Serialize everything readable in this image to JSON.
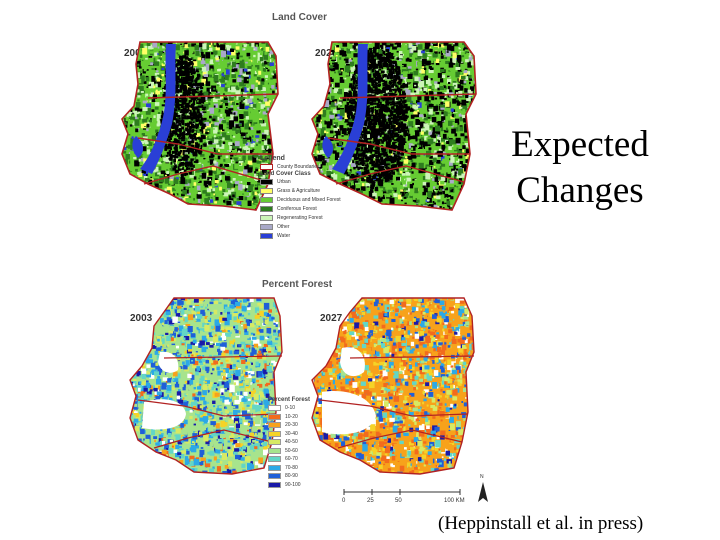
{
  "title": {
    "line1": "Expected",
    "line2": "Changes"
  },
  "citation": "(Heppinstall et al. in press)",
  "land_cover": {
    "heading": "Land Cover",
    "year_left": "2003",
    "year_right": "2027",
    "legend": {
      "title": "Legend",
      "boundary_label": "County Boundaries",
      "class_title": "Land Cover Class",
      "classes": [
        {
          "label": "Urban",
          "color": "#000000"
        },
        {
          "label": "Grass & Agriculture",
          "color": "#ffff66"
        },
        {
          "label": "Deciduous and Mixed Forest",
          "color": "#66cc33"
        },
        {
          "label": "Coniferous Forest",
          "color": "#2e7d1e"
        },
        {
          "label": "Regenerating Forest",
          "color": "#ccf5b8"
        },
        {
          "label": "Other",
          "color": "#a9a9c8"
        },
        {
          "label": "Water",
          "color": "#2a3fd6"
        }
      ]
    }
  },
  "percent_forest": {
    "heading": "Percent Forest",
    "year_left": "2003",
    "year_right": "2027",
    "legend": {
      "title": "Percent Forest",
      "classes": [
        {
          "label": "0-10",
          "color": "#ffffff"
        },
        {
          "label": "10-20",
          "color": "#f26b1d"
        },
        {
          "label": "20-30",
          "color": "#f7a21b"
        },
        {
          "label": "30-40",
          "color": "#f5d327"
        },
        {
          "label": "40-50",
          "color": "#d7ea63"
        },
        {
          "label": "50-60",
          "color": "#a7e48d"
        },
        {
          "label": "60-70",
          "color": "#62d6c6"
        },
        {
          "label": "70-80",
          "color": "#2ca9e6"
        },
        {
          "label": "80-90",
          "color": "#1f5fd8"
        },
        {
          "label": "90-100",
          "color": "#1a1aa8"
        }
      ]
    }
  },
  "scale": {
    "ticks": [
      "0",
      "25",
      "50",
      "100 KM"
    ],
    "north": "N"
  },
  "colors": {
    "boundary": "#b22222"
  }
}
